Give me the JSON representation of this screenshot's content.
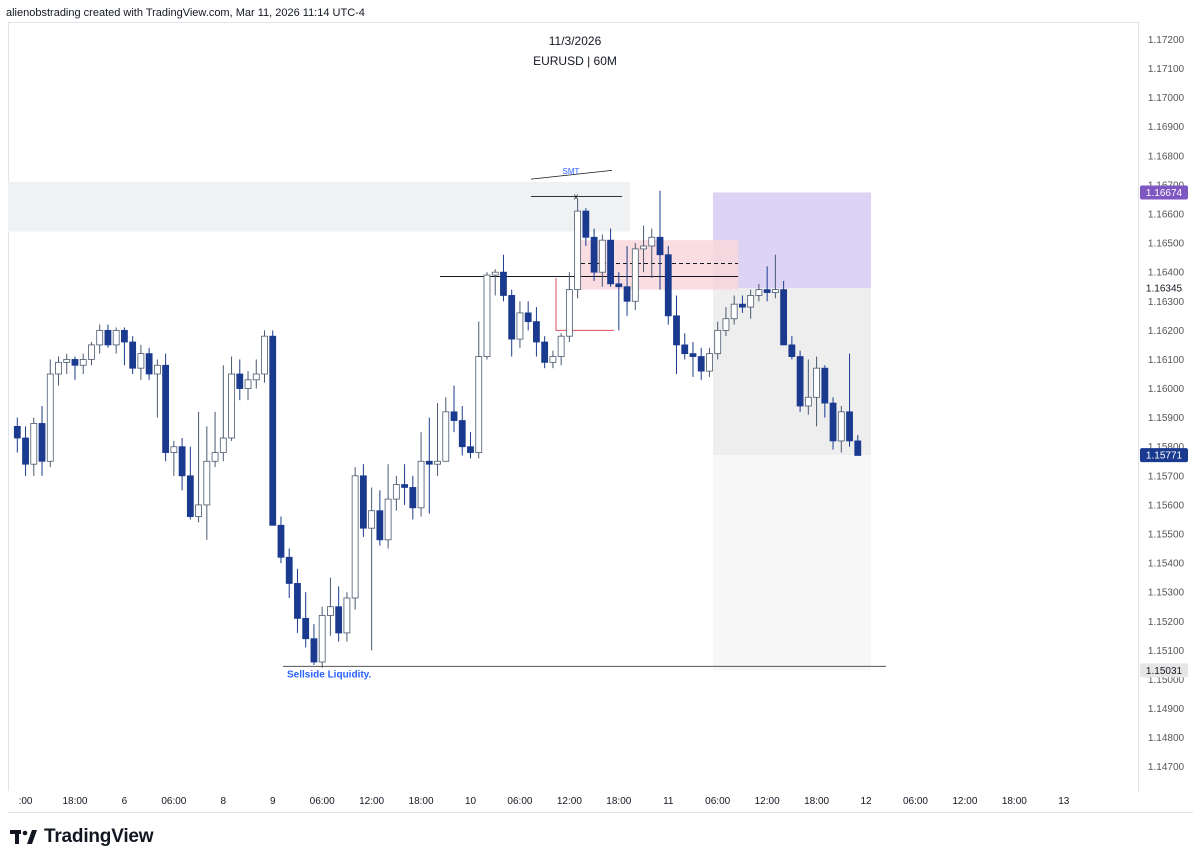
{
  "header": {
    "attribution": "alienobstrading created with TradingView.com, Mar 11, 2026 11:14 UTC-4"
  },
  "chart_title": {
    "date": "11/3/2026",
    "symbol": "EURUSD | 60M"
  },
  "footer": {
    "brand": "TradingView",
    "logo_icon": "tradingview-logo-icon"
  },
  "colors": {
    "bull_fill": "#ffffff",
    "bull_border": "#2a3f8f",
    "bear": "#1a3a8f",
    "zone_grey": "#f0f1f3",
    "supply_red": "#f9d7dc",
    "target_purple": "#dcd3f5",
    "stop_grey": "#f0f0f0",
    "label_purple": "#7e57c2",
    "label_navy": "#1a3a8f",
    "label_grey": "#e6e6e6",
    "annotation_blue": "#2962ff"
  },
  "chart_data": {
    "type": "candlestick",
    "symbol": "EURUSD",
    "timeframe": "60M",
    "y_axis": {
      "range": [
        1.1462,
        1.1726
      ],
      "ticks": [
        "1.17200",
        "1.17100",
        "1.17000",
        "1.16900",
        "1.16800",
        "1.16700",
        "1.16600",
        "1.16500",
        "1.16400",
        "1.16300",
        "1.16200",
        "1.16100",
        "1.16000",
        "1.15900",
        "1.15800",
        "1.15700",
        "1.15600",
        "1.15500",
        "1.15400",
        "1.15300",
        "1.15200",
        "1.15100",
        "1.15000",
        "1.14900",
        "1.14800",
        "1.14700"
      ]
    },
    "x_axis": {
      "ticks": [
        {
          "label": ":00",
          "i": -4
        },
        {
          "label": "18:00",
          "i": 2
        },
        {
          "label": "6",
          "i": 8
        },
        {
          "label": "06:00",
          "i": 14
        },
        {
          "label": "8",
          "i": 20
        },
        {
          "label": "9",
          "i": 26
        },
        {
          "label": "06:00",
          "i": 32
        },
        {
          "label": "12:00",
          "i": 38
        },
        {
          "label": "18:00",
          "i": 44
        },
        {
          "label": "10",
          "i": 50
        },
        {
          "label": "06:00",
          "i": 56
        },
        {
          "label": "12:00",
          "i": 62
        },
        {
          "label": "18:00",
          "i": 68
        },
        {
          "label": "11",
          "i": 74
        },
        {
          "label": "06:00",
          "i": 80
        },
        {
          "label": "12:00",
          "i": 86
        },
        {
          "label": "18:00",
          "i": 92
        },
        {
          "label": "12",
          "i": 98
        },
        {
          "label": "06:00",
          "i": 104
        },
        {
          "label": "12:00",
          "i": 110
        },
        {
          "label": "18:00",
          "i": 116
        },
        {
          "label": "13",
          "i": 122
        }
      ]
    },
    "candles": [
      [
        1.1587,
        1.159,
        1.1578,
        1.1583
      ],
      [
        1.1583,
        1.1587,
        1.157,
        1.1574
      ],
      [
        1.1574,
        1.159,
        1.157,
        1.1588
      ],
      [
        1.1588,
        1.1594,
        1.157,
        1.1575
      ],
      [
        1.1575,
        1.161,
        1.1573,
        1.1605
      ],
      [
        1.1605,
        1.1611,
        1.1601,
        1.1609
      ],
      [
        1.1609,
        1.1612,
        1.1605,
        1.161
      ],
      [
        1.161,
        1.1611,
        1.1603,
        1.1608
      ],
      [
        1.1608,
        1.1612,
        1.1605,
        1.161
      ],
      [
        1.161,
        1.1616,
        1.1608,
        1.1615
      ],
      [
        1.1615,
        1.1622,
        1.1612,
        1.162
      ],
      [
        1.162,
        1.1622,
        1.1614,
        1.1615
      ],
      [
        1.1615,
        1.1621,
        1.1612,
        1.162
      ],
      [
        1.162,
        1.1621,
        1.1608,
        1.1616
      ],
      [
        1.1616,
        1.1618,
        1.1605,
        1.1607
      ],
      [
        1.1607,
        1.1615,
        1.1603,
        1.1612
      ],
      [
        1.1612,
        1.1614,
        1.1603,
        1.1605
      ],
      [
        1.1605,
        1.161,
        1.159,
        1.1608
      ],
      [
        1.1608,
        1.1612,
        1.1575,
        1.1578
      ],
      [
        1.1578,
        1.1582,
        1.157,
        1.158
      ],
      [
        1.158,
        1.1583,
        1.1565,
        1.157
      ],
      [
        1.157,
        1.158,
        1.1555,
        1.1556
      ],
      [
        1.1556,
        1.1592,
        1.1554,
        1.156
      ],
      [
        1.156,
        1.1587,
        1.1548,
        1.1575
      ],
      [
        1.1575,
        1.1592,
        1.1573,
        1.1578
      ],
      [
        1.1578,
        1.1608,
        1.1575,
        1.1583
      ],
      [
        1.1583,
        1.1611,
        1.1582,
        1.1605
      ],
      [
        1.1605,
        1.161,
        1.1596,
        1.16
      ],
      [
        1.16,
        1.1606,
        1.1596,
        1.1603
      ],
      [
        1.1603,
        1.161,
        1.16,
        1.1605
      ],
      [
        1.1605,
        1.162,
        1.1602,
        1.1618
      ],
      [
        1.1618,
        1.162,
        1.1553,
        1.1553
      ],
      [
        1.1553,
        1.1556,
        1.154,
        1.1542
      ],
      [
        1.1542,
        1.1545,
        1.1528,
        1.1533
      ],
      [
        1.1533,
        1.1538,
        1.1516,
        1.1521
      ],
      [
        1.1521,
        1.153,
        1.1511,
        1.1514
      ],
      [
        1.1514,
        1.1519,
        1.1505,
        1.1506
      ],
      [
        1.1506,
        1.1525,
        1.1504,
        1.1522
      ],
      [
        1.1522,
        1.1535,
        1.1515,
        1.1525
      ],
      [
        1.1525,
        1.1532,
        1.1513,
        1.1516
      ],
      [
        1.1516,
        1.153,
        1.1513,
        1.1528
      ],
      [
        1.1528,
        1.1573,
        1.1524,
        1.157
      ],
      [
        1.157,
        1.1574,
        1.1549,
        1.1552
      ],
      [
        1.1552,
        1.1566,
        1.151,
        1.1558
      ],
      [
        1.1558,
        1.1565,
        1.1546,
        1.1548
      ],
      [
        1.1548,
        1.1574,
        1.1545,
        1.1562
      ],
      [
        1.1562,
        1.157,
        1.1558,
        1.1567
      ],
      [
        1.1567,
        1.1574,
        1.156,
        1.1566
      ],
      [
        1.1566,
        1.157,
        1.1555,
        1.1559
      ],
      [
        1.1559,
        1.1585,
        1.1556,
        1.1575
      ],
      [
        1.1575,
        1.159,
        1.1557,
        1.1574
      ],
      [
        1.1574,
        1.1595,
        1.157,
        1.1575
      ],
      [
        1.1575,
        1.1597,
        1.1575,
        1.1592
      ],
      [
        1.1592,
        1.1601,
        1.1585,
        1.1589
      ],
      [
        1.1589,
        1.1594,
        1.1577,
        1.158
      ],
      [
        1.158,
        1.1585,
        1.1576,
        1.1578
      ],
      [
        1.1578,
        1.1623,
        1.1576,
        1.1611
      ],
      [
        1.1611,
        1.164,
        1.161,
        1.1639
      ],
      [
        1.1639,
        1.1641,
        1.1632,
        1.164
      ],
      [
        1.164,
        1.1646,
        1.163,
        1.1632
      ],
      [
        1.1632,
        1.1634,
        1.1611,
        1.1617
      ],
      [
        1.1617,
        1.163,
        1.1614,
        1.1626
      ],
      [
        1.1626,
        1.163,
        1.162,
        1.1623
      ],
      [
        1.1623,
        1.1628,
        1.1611,
        1.1616
      ],
      [
        1.1616,
        1.1618,
        1.1607,
        1.1609
      ],
      [
        1.1609,
        1.1613,
        1.1607,
        1.1611
      ],
      [
        1.1611,
        1.1619,
        1.1608,
        1.1618
      ],
      [
        1.1618,
        1.164,
        1.1616,
        1.1634
      ],
      [
        1.1634,
        1.1665,
        1.1631,
        1.1661
      ],
      [
        1.1661,
        1.1662,
        1.1649,
        1.1652
      ],
      [
        1.1652,
        1.1655,
        1.1637,
        1.164
      ],
      [
        1.164,
        1.1653,
        1.1635,
        1.1651
      ],
      [
        1.1651,
        1.1655,
        1.1635,
        1.1636
      ],
      [
        1.1636,
        1.164,
        1.162,
        1.1635
      ],
      [
        1.1635,
        1.1649,
        1.1625,
        1.163
      ],
      [
        1.163,
        1.165,
        1.1627,
        1.1648
      ],
      [
        1.1648,
        1.1656,
        1.164,
        1.1649
      ],
      [
        1.1649,
        1.1655,
        1.1638,
        1.1652
      ],
      [
        1.1652,
        1.1668,
        1.1634,
        1.1646
      ],
      [
        1.1646,
        1.1649,
        1.1622,
        1.1625
      ],
      [
        1.1625,
        1.1632,
        1.1605,
        1.1615
      ],
      [
        1.1615,
        1.1619,
        1.161,
        1.1612
      ],
      [
        1.1612,
        1.1616,
        1.1604,
        1.1611
      ],
      [
        1.1611,
        1.1614,
        1.1603,
        1.1606
      ],
      [
        1.1606,
        1.1614,
        1.1604,
        1.1612
      ],
      [
        1.1612,
        1.1623,
        1.161,
        1.162
      ],
      [
        1.162,
        1.1628,
        1.1618,
        1.1624
      ],
      [
        1.1624,
        1.1632,
        1.1622,
        1.1629
      ],
      [
        1.1629,
        1.1632,
        1.1626,
        1.1628
      ],
      [
        1.1628,
        1.1634,
        1.1624,
        1.1632
      ],
      [
        1.1632,
        1.1636,
        1.163,
        1.1634
      ],
      [
        1.1634,
        1.1642,
        1.163,
        1.1633
      ],
      [
        1.1633,
        1.1646,
        1.1631,
        1.1634
      ],
      [
        1.1634,
        1.1637,
        1.1615,
        1.1615
      ],
      [
        1.1615,
        1.1618,
        1.161,
        1.1611
      ],
      [
        1.1611,
        1.1613,
        1.1592,
        1.1594
      ],
      [
        1.1594,
        1.161,
        1.1591,
        1.1597
      ],
      [
        1.1597,
        1.1611,
        1.1587,
        1.1607
      ],
      [
        1.1607,
        1.1608,
        1.159,
        1.1595
      ],
      [
        1.1595,
        1.1597,
        1.1579,
        1.1582
      ],
      [
        1.1582,
        1.1594,
        1.1578,
        1.1592
      ],
      [
        1.1592,
        1.1612,
        1.158,
        1.1582
      ],
      [
        1.1582,
        1.1584,
        1.1577,
        1.1577
      ]
    ],
    "first_candle_index": -5,
    "levels": {
      "current_price": "1.15771",
      "target": "1.16674",
      "entry": "1.16345",
      "stop": "1.15031",
      "sellside_liquidity": 1.15045,
      "equal_highs_line": 1.16385,
      "dashed_level": 1.1643
    },
    "annotations": {
      "smt": "SMT",
      "x_mark": "x",
      "sellside": "Sellside Liquidity."
    }
  }
}
